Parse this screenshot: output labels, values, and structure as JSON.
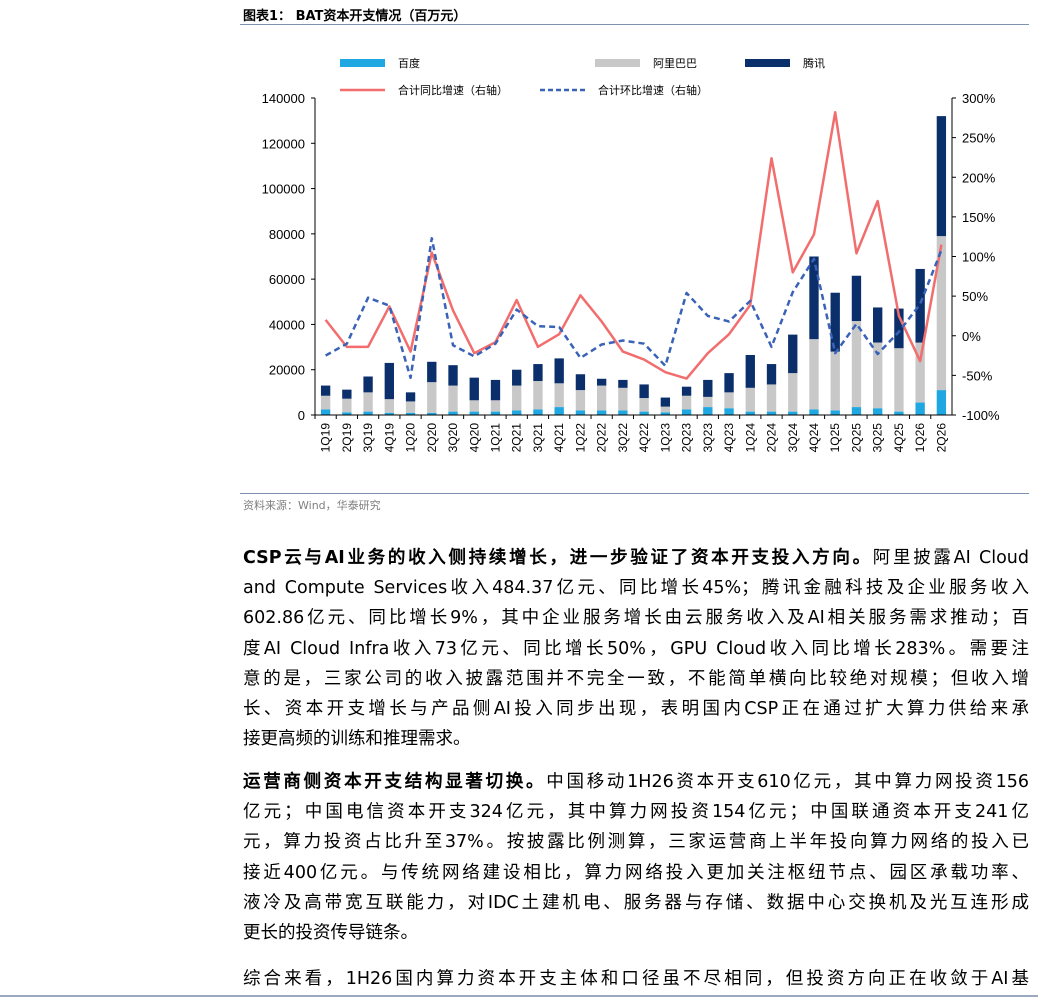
{
  "figure": {
    "title": "图表1： BAT资本开支情况（百万元）",
    "source": "资料来源：Wind，华泰研究"
  },
  "chart_data": {
    "type": "bar",
    "stacked": true,
    "categories": [
      "1Q19",
      "2Q19",
      "3Q19",
      "4Q19",
      "1Q20",
      "2Q20",
      "3Q20",
      "4Q20",
      "1Q21",
      "2Q21",
      "3Q21",
      "4Q21",
      "1Q22",
      "2Q22",
      "3Q22",
      "4Q22",
      "1Q23",
      "2Q23",
      "3Q23",
      "4Q23",
      "1Q24",
      "2Q24",
      "3Q24",
      "4Q24",
      "1Q25",
      "2Q25",
      "3Q25",
      "4Q25",
      "1Q26",
      "2Q26"
    ],
    "series": [
      {
        "name": "百度",
        "type": "bar",
        "axis": "left",
        "color": "#1ea7e1",
        "values": [
          2500,
          1200,
          1500,
          1000,
          1000,
          1000,
          1500,
          1500,
          1500,
          2000,
          2500,
          3500,
          2000,
          2000,
          2000,
          1500,
          1200,
          2500,
          3500,
          3000,
          1500,
          1500,
          1500,
          2500,
          2000,
          3500,
          3000,
          1500,
          5500,
          11000
        ]
      },
      {
        "name": "阿里巴巴",
        "type": "bar",
        "axis": "left",
        "color": "#c8c8c8",
        "values": [
          6000,
          6000,
          8500,
          6000,
          5000,
          13500,
          11500,
          5000,
          5000,
          11000,
          12500,
          10500,
          9000,
          11000,
          10000,
          6000,
          2500,
          6000,
          4500,
          7000,
          10500,
          12000,
          17000,
          31000,
          26000,
          38000,
          29000,
          28000,
          26500,
          68000
        ]
      },
      {
        "name": "腾讯",
        "type": "bar",
        "axis": "left",
        "color": "#0b2f6b",
        "values": [
          4500,
          4000,
          7000,
          16000,
          4000,
          9000,
          9000,
          10000,
          9000,
          7000,
          7500,
          11000,
          7000,
          3000,
          3500,
          6000,
          4000,
          4000,
          7500,
          8500,
          14500,
          9000,
          17000,
          36500,
          26000,
          20000,
          15500,
          17500,
          32500,
          53000
        ]
      },
      {
        "name": "合计同比增速（右轴）",
        "type": "line",
        "axis": "right",
        "color": "#f26d6d",
        "dash": false,
        "values": [
          20,
          -14,
          -14,
          37,
          -20,
          105,
          32,
          -22,
          -8,
          45,
          -14,
          2,
          51,
          18,
          -20,
          -30,
          -46,
          -54,
          -22,
          2,
          39,
          224,
          80,
          128,
          282,
          104,
          170,
          25,
          -32,
          115
        ]
      },
      {
        "name": "合计环比增速（右轴）",
        "type": "line",
        "axis": "right",
        "color": "#3a63b8",
        "dash": true,
        "values": [
          -25,
          -10,
          48,
          38,
          -53,
          123,
          -12,
          -26,
          -10,
          33,
          12,
          11,
          -28,
          -11,
          -6,
          -10,
          -38,
          54,
          25,
          18,
          44,
          -14,
          55,
          97,
          -22,
          15,
          -23,
          5,
          40,
          108
        ]
      }
    ],
    "ylim_left": [
      0,
      140000
    ],
    "yticks_left": [
      "0",
      "20000",
      "40000",
      "60000",
      "80000",
      "100000",
      "120000",
      "140000"
    ],
    "ylim_right": [
      -100,
      300
    ],
    "yticks_right": [
      "-100%",
      "-50%",
      "0%",
      "50%",
      "100%",
      "150%",
      "200%",
      "250%",
      "300%"
    ],
    "legend_position": "top",
    "grid": false
  },
  "paragraphs": [
    {
      "lines": [
        [
          {
            "b": true,
            "t": "CSP云与AI业务的收入侧持续增长，进一步验证了资本开支投入方向。"
          },
          {
            "b": false,
            "t": "阿里披露AI Cloud"
          }
        ],
        [
          {
            "b": false,
            "t": "and Compute Services收入484.37亿元、同比增长45%；腾讯金融科技及企业服务收入"
          }
        ],
        [
          {
            "b": false,
            "t": "602.86亿元、同比增长9%，其中企业服务增长由云服务收入及AI相关服务需求推动；百"
          }
        ],
        [
          {
            "b": false,
            "t": "度AI Cloud Infra收入73亿元、同比增长50%，GPU Cloud收入同比增长283%。需要注"
          }
        ],
        [
          {
            "b": false,
            "t": "意的是，三家公司的收入披露范围并不完全一致，不能简单横向比较绝对规模；但收入增"
          }
        ],
        [
          {
            "b": false,
            "t": "长、资本开支增长与产品侧AI投入同步出现，表明国内CSP正在通过扩大算力供给来承"
          }
        ],
        [
          {
            "b": false,
            "t": "接更高频的训练和推理需求。"
          }
        ]
      ]
    },
    {
      "lines": [
        [
          {
            "b": true,
            "t": "运营商侧资本开支结构显著切换。"
          },
          {
            "b": false,
            "t": "中国移动1H26资本开支610亿元，其中算力网投资156"
          }
        ],
        [
          {
            "b": false,
            "t": "亿元；中国电信资本开支324亿元，其中算力网投资154亿元；中国联通资本开支241亿"
          }
        ],
        [
          {
            "b": false,
            "t": "元，算力投资占比升至37%。按披露比例测算，三家运营商上半年投向算力网络的投入已"
          }
        ],
        [
          {
            "b": false,
            "t": "接近400亿元。与传统网络建设相比，算力网络投入更加关注枢纽节点、园区承载功率、"
          }
        ],
        [
          {
            "b": false,
            "t": "液冷及高带宽互联能力，对IDC土建机电、服务器与存储、数据中心交换机及光互连形成"
          }
        ],
        [
          {
            "b": false,
            "t": "更长的投资传导链条。"
          }
        ]
      ]
    },
    {
      "lines": [
        [
          {
            "b": false,
            "t": "综合来看，1H26国内算力资本开支主体和口径虽不尽相同，但投资方向正在收敛于AI基"
          }
        ]
      ]
    }
  ]
}
